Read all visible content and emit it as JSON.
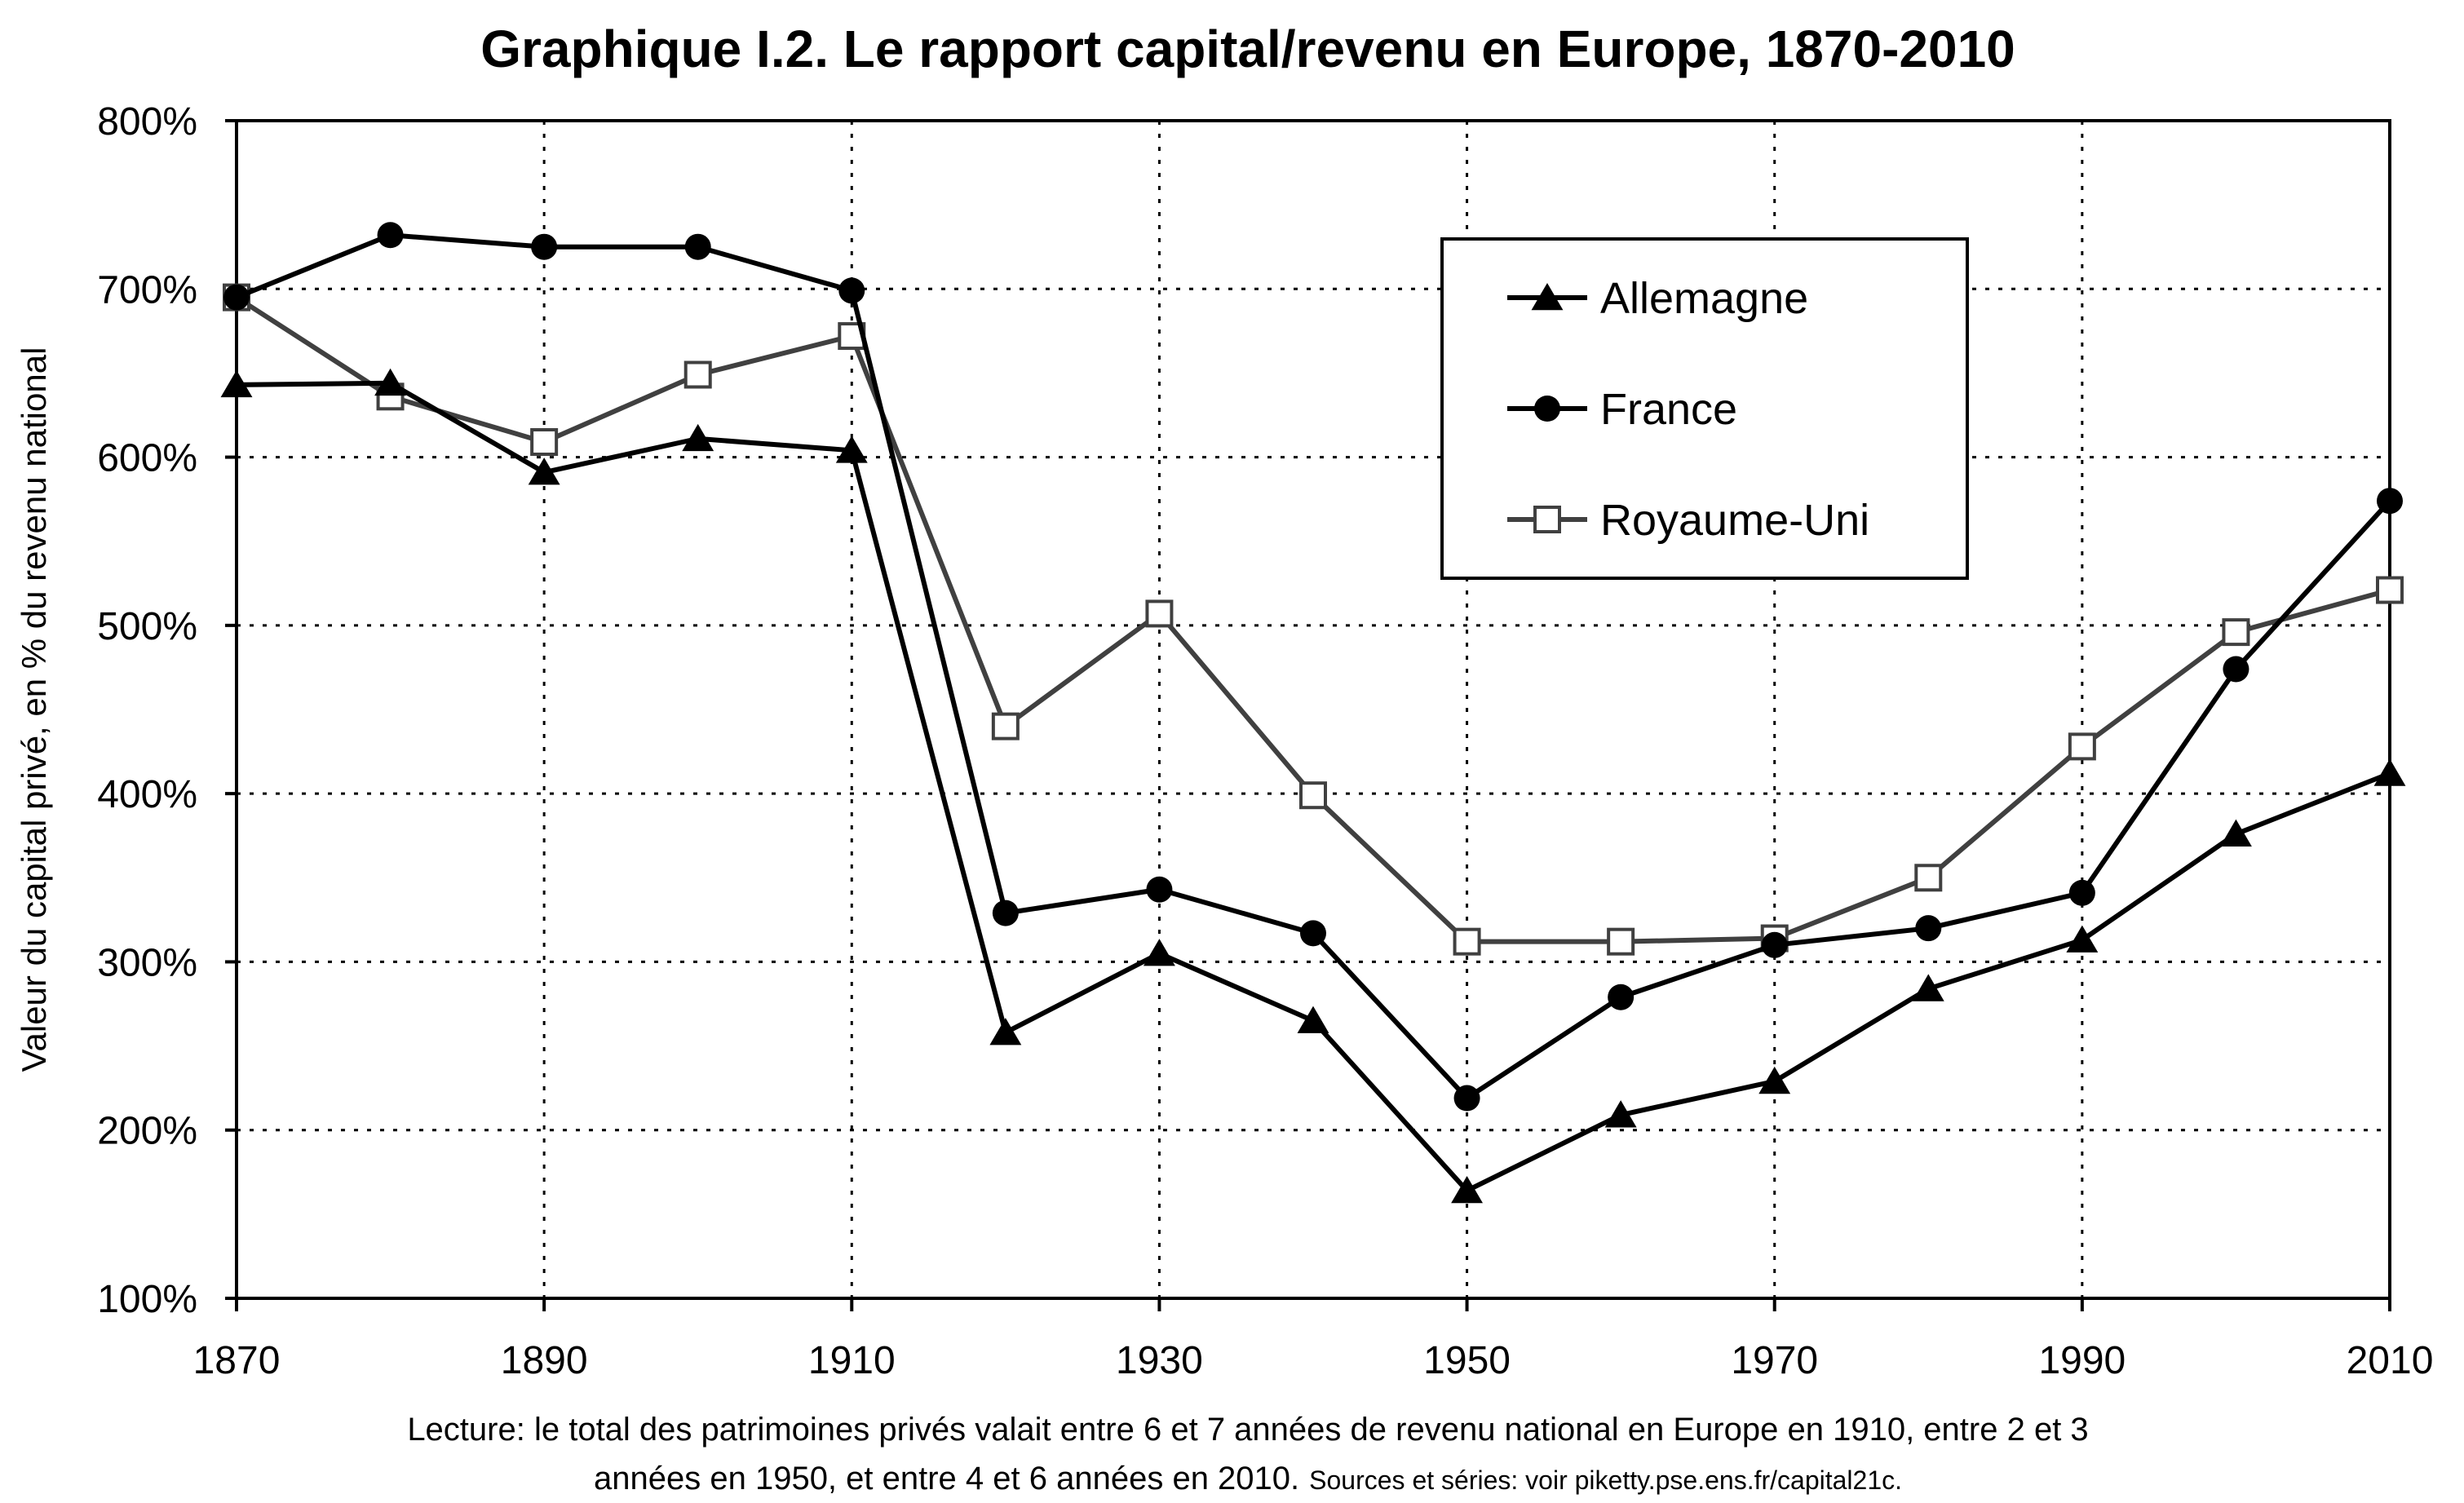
{
  "chart_data": {
    "type": "line",
    "title": "Graphique I.2. Le rapport capital/revenu en Europe, 1870-2010",
    "xlabel": "",
    "ylabel": "Valeur du capital privé, en % du revenu national",
    "xlim": [
      1870,
      2010
    ],
    "ylim": [
      100,
      800
    ],
    "x_ticks": [
      "1870",
      "1890",
      "1910",
      "1930",
      "1950",
      "1970",
      "1990",
      "2010"
    ],
    "y_ticks": [
      "100%",
      "200%",
      "300%",
      "400%",
      "500%",
      "600%",
      "700%",
      "800%"
    ],
    "grid": "dotted",
    "legend_position": "top-right",
    "series": [
      {
        "name": "Allemagne",
        "marker": "triangle",
        "color": "#000000",
        "points": [
          [
            1870,
            643
          ],
          [
            1880,
            644
          ],
          [
            1890,
            591
          ],
          [
            1900,
            611
          ],
          [
            1910,
            604
          ],
          [
            1920,
            258
          ],
          [
            1930,
            305
          ],
          [
            1940,
            265
          ],
          [
            1950,
            164
          ],
          [
            1960,
            209
          ],
          [
            1970,
            229
          ],
          [
            1980,
            284
          ],
          [
            1990,
            313
          ],
          [
            2000,
            376
          ],
          [
            2010,
            412
          ]
        ]
      },
      {
        "name": "France",
        "marker": "circle",
        "color": "#000000",
        "points": [
          [
            1870,
            695
          ],
          [
            1880,
            732
          ],
          [
            1890,
            725
          ],
          [
            1900,
            725
          ],
          [
            1910,
            699
          ],
          [
            1920,
            329
          ],
          [
            1930,
            343
          ],
          [
            1940,
            317
          ],
          [
            1950,
            219
          ],
          [
            1960,
            279
          ],
          [
            1970,
            310
          ],
          [
            1980,
            320
          ],
          [
            1990,
            341
          ],
          [
            2000,
            474
          ],
          [
            2010,
            574
          ]
        ]
      },
      {
        "name": "Royaume-Uni",
        "marker": "open-square",
        "color": "#404040",
        "points": [
          [
            1870,
            695
          ],
          [
            1880,
            636
          ],
          [
            1890,
            609
          ],
          [
            1900,
            649
          ],
          [
            1910,
            672
          ],
          [
            1920,
            440
          ],
          [
            1930,
            507
          ],
          [
            1940,
            399
          ],
          [
            1950,
            312
          ],
          [
            1960,
            312
          ],
          [
            1970,
            314
          ],
          [
            1980,
            350
          ],
          [
            1990,
            428
          ],
          [
            2000,
            496
          ],
          [
            2010,
            521
          ]
        ]
      }
    ],
    "footnote_line1": "Lecture: le total des patrimoines privés valait entre 6 et 7 années de revenu national en Europe en 1910, entre 2 et 3",
    "footnote_line2": "années en 1950, et entre 4 et 6 années en 2010.",
    "footnote_sources": "Sources et séries: voir piketty.pse.ens.fr/capital21c."
  }
}
